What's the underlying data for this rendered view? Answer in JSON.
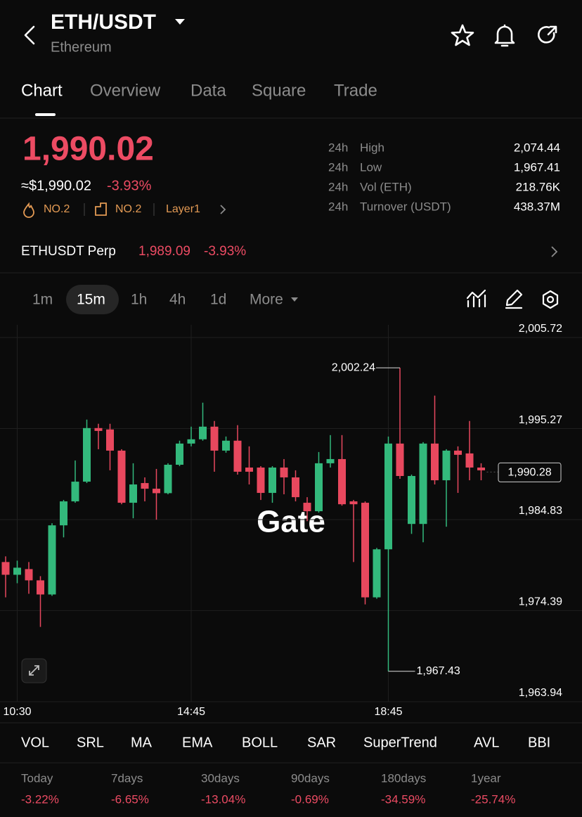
{
  "header": {
    "title": "ETH/USDT",
    "subtitle": "Ethereum"
  },
  "tabs": [
    "Chart",
    "Overview",
    "Data",
    "Square",
    "Trade"
  ],
  "price": {
    "last": "1,990.02",
    "usd": "≈$1,990.02",
    "change": "-3.93%"
  },
  "tags": [
    "NO.2",
    "NO.2",
    "Layer1"
  ],
  "stats": [
    {
      "period": "24h",
      "label": "High",
      "value": "2,074.44"
    },
    {
      "period": "24h",
      "label": "Low",
      "value": "1,967.41"
    },
    {
      "period": "24h",
      "label": "Vol (ETH)",
      "value": "218.76K"
    },
    {
      "period": "24h",
      "label": "Turnover (USDT)",
      "value": "438.37M"
    }
  ],
  "perp": {
    "name": "ETHUSDT Perp",
    "price": "1,989.09",
    "change": "-3.93%"
  },
  "intervals": [
    "1m",
    "15m",
    "1h",
    "4h",
    "1d",
    "More"
  ],
  "indicators": [
    "VOL",
    "SRL",
    "MA",
    "EMA",
    "BOLL",
    "SAR",
    "SuperTrend",
    "AVL",
    "BBI"
  ],
  "performance": [
    {
      "period": "Today",
      "change": "-3.22%"
    },
    {
      "period": "7days",
      "change": "-6.65%"
    },
    {
      "period": "30days",
      "change": "-13.04%"
    },
    {
      "period": "90days",
      "change": "-0.69%"
    },
    {
      "period": "180days",
      "change": "-34.59%"
    },
    {
      "period": "1year",
      "change": "-25.74%"
    }
  ],
  "chart_data": {
    "type": "candlestick",
    "categories": [
      null,
      "10:30",
      null,
      null,
      null,
      null,
      null,
      null,
      null,
      null,
      null,
      null,
      null,
      null,
      null,
      null,
      "14:45",
      null,
      null,
      null,
      null,
      null,
      null,
      null,
      null,
      null,
      null,
      null,
      null,
      null,
      null,
      null,
      null,
      "18:45",
      null,
      null,
      null,
      null,
      null,
      null,
      null,
      null
    ],
    "open": [
      1979.96,
      1978.5,
      1979.15,
      1977.86,
      1976.24,
      1984.17,
      1986.92,
      1989.18,
      1995.33,
      1995.17,
      1992.74,
      1986.76,
      1989.02,
      1988.37,
      1987.86,
      1991.12,
      1993.55,
      1994.04,
      1995.49,
      1992.74,
      1993.88,
      1990.8,
      1990.8,
      1987.89,
      1990.8,
      1989.67,
      1986.76,
      1985.79,
      1991.29,
      1991.77,
      1986.92,
      1986.76,
      1975.91,
      1981.42,
      1993.55,
      1984.33,
      1984.33,
      1993.55,
      1989.34,
      1992.74,
      1992.42,
      1990.8
    ],
    "close": [
      1978.5,
      1979.31,
      1977.86,
      1976.24,
      1984.17,
      1986.92,
      1989.18,
      1995.33,
      1995.0,
      1992.74,
      1986.76,
      1988.86,
      1988.37,
      1987.86,
      1991.12,
      1993.55,
      1994.04,
      1995.49,
      1992.74,
      1993.88,
      1990.32,
      1990.32,
      1987.89,
      1990.8,
      1989.67,
      1987.4,
      1985.79,
      1991.29,
      1991.77,
      1986.59,
      1986.59,
      1975.91,
      1981.42,
      1993.55,
      1989.83,
      1989.83,
      1993.55,
      1989.34,
      1992.74,
      1992.26,
      1990.8,
      1990.48
    ],
    "high": [
      1980.61,
      1980.12,
      1979.96,
      1978.34,
      1984.41,
      1987.08,
      1991.61,
      1996.3,
      1995.82,
      1995.82,
      1992.9,
      1991.29,
      1989.67,
      1990.64,
      1991.29,
      1993.88,
      1995.49,
      1998.24,
      1996.14,
      1994.36,
      1995.66,
      1993.23,
      1990.96,
      1990.96,
      1991.77,
      1990.48,
      1987.4,
      1992.58,
      1994.52,
      1994.52,
      1987.08,
      1986.92,
      1981.58,
      1994.36,
      2002.24,
      1989.99,
      1993.71,
      1999.05,
      1992.9,
      1993.23,
      1996.14,
      1991.29
    ],
    "low": [
      1975.91,
      1977.53,
      1976.32,
      1972.52,
      1976.08,
      1982.79,
      1986.76,
      1989.02,
      1992.9,
      1990.48,
      1986.59,
      1984.98,
      1986.92,
      1984.82,
      1987.73,
      1990.96,
      1993.23,
      1993.88,
      1990.32,
      1992.5,
      1989.99,
      1988.86,
      1987.08,
      1986.76,
      1987.73,
      1986.92,
      1984.65,
      1985.63,
      1990.8,
      1986.43,
      1979.96,
      1975.1,
      1975.75,
      1967.43,
      1989.51,
      1983.19,
      1982.23,
      1988.86,
      1984.01,
      1987.89,
      1989.34,
      1989.34
    ],
    "up_color": "#33b97c",
    "down_color": "#e8485e",
    "ylim": [
      1963.94,
      2007.17
    ],
    "yticks": [
      {
        "value": 2005.72,
        "label": "2,005.72"
      },
      {
        "value": 1995.27,
        "label": "1,995.27"
      },
      {
        "value": 1984.83,
        "label": "1,984.83"
      },
      {
        "value": 1974.39,
        "label": "1,974.39"
      },
      {
        "value": 1963.94,
        "label": "1,963.94"
      }
    ],
    "grid": true,
    "high_label": {
      "value": 2002.24,
      "label": "2,002.24"
    },
    "low_label": {
      "value": 1967.43,
      "label": "1,967.43"
    },
    "last_price": {
      "value": 1990.28,
      "label": "1,990.28"
    },
    "watermark": "Gate"
  }
}
